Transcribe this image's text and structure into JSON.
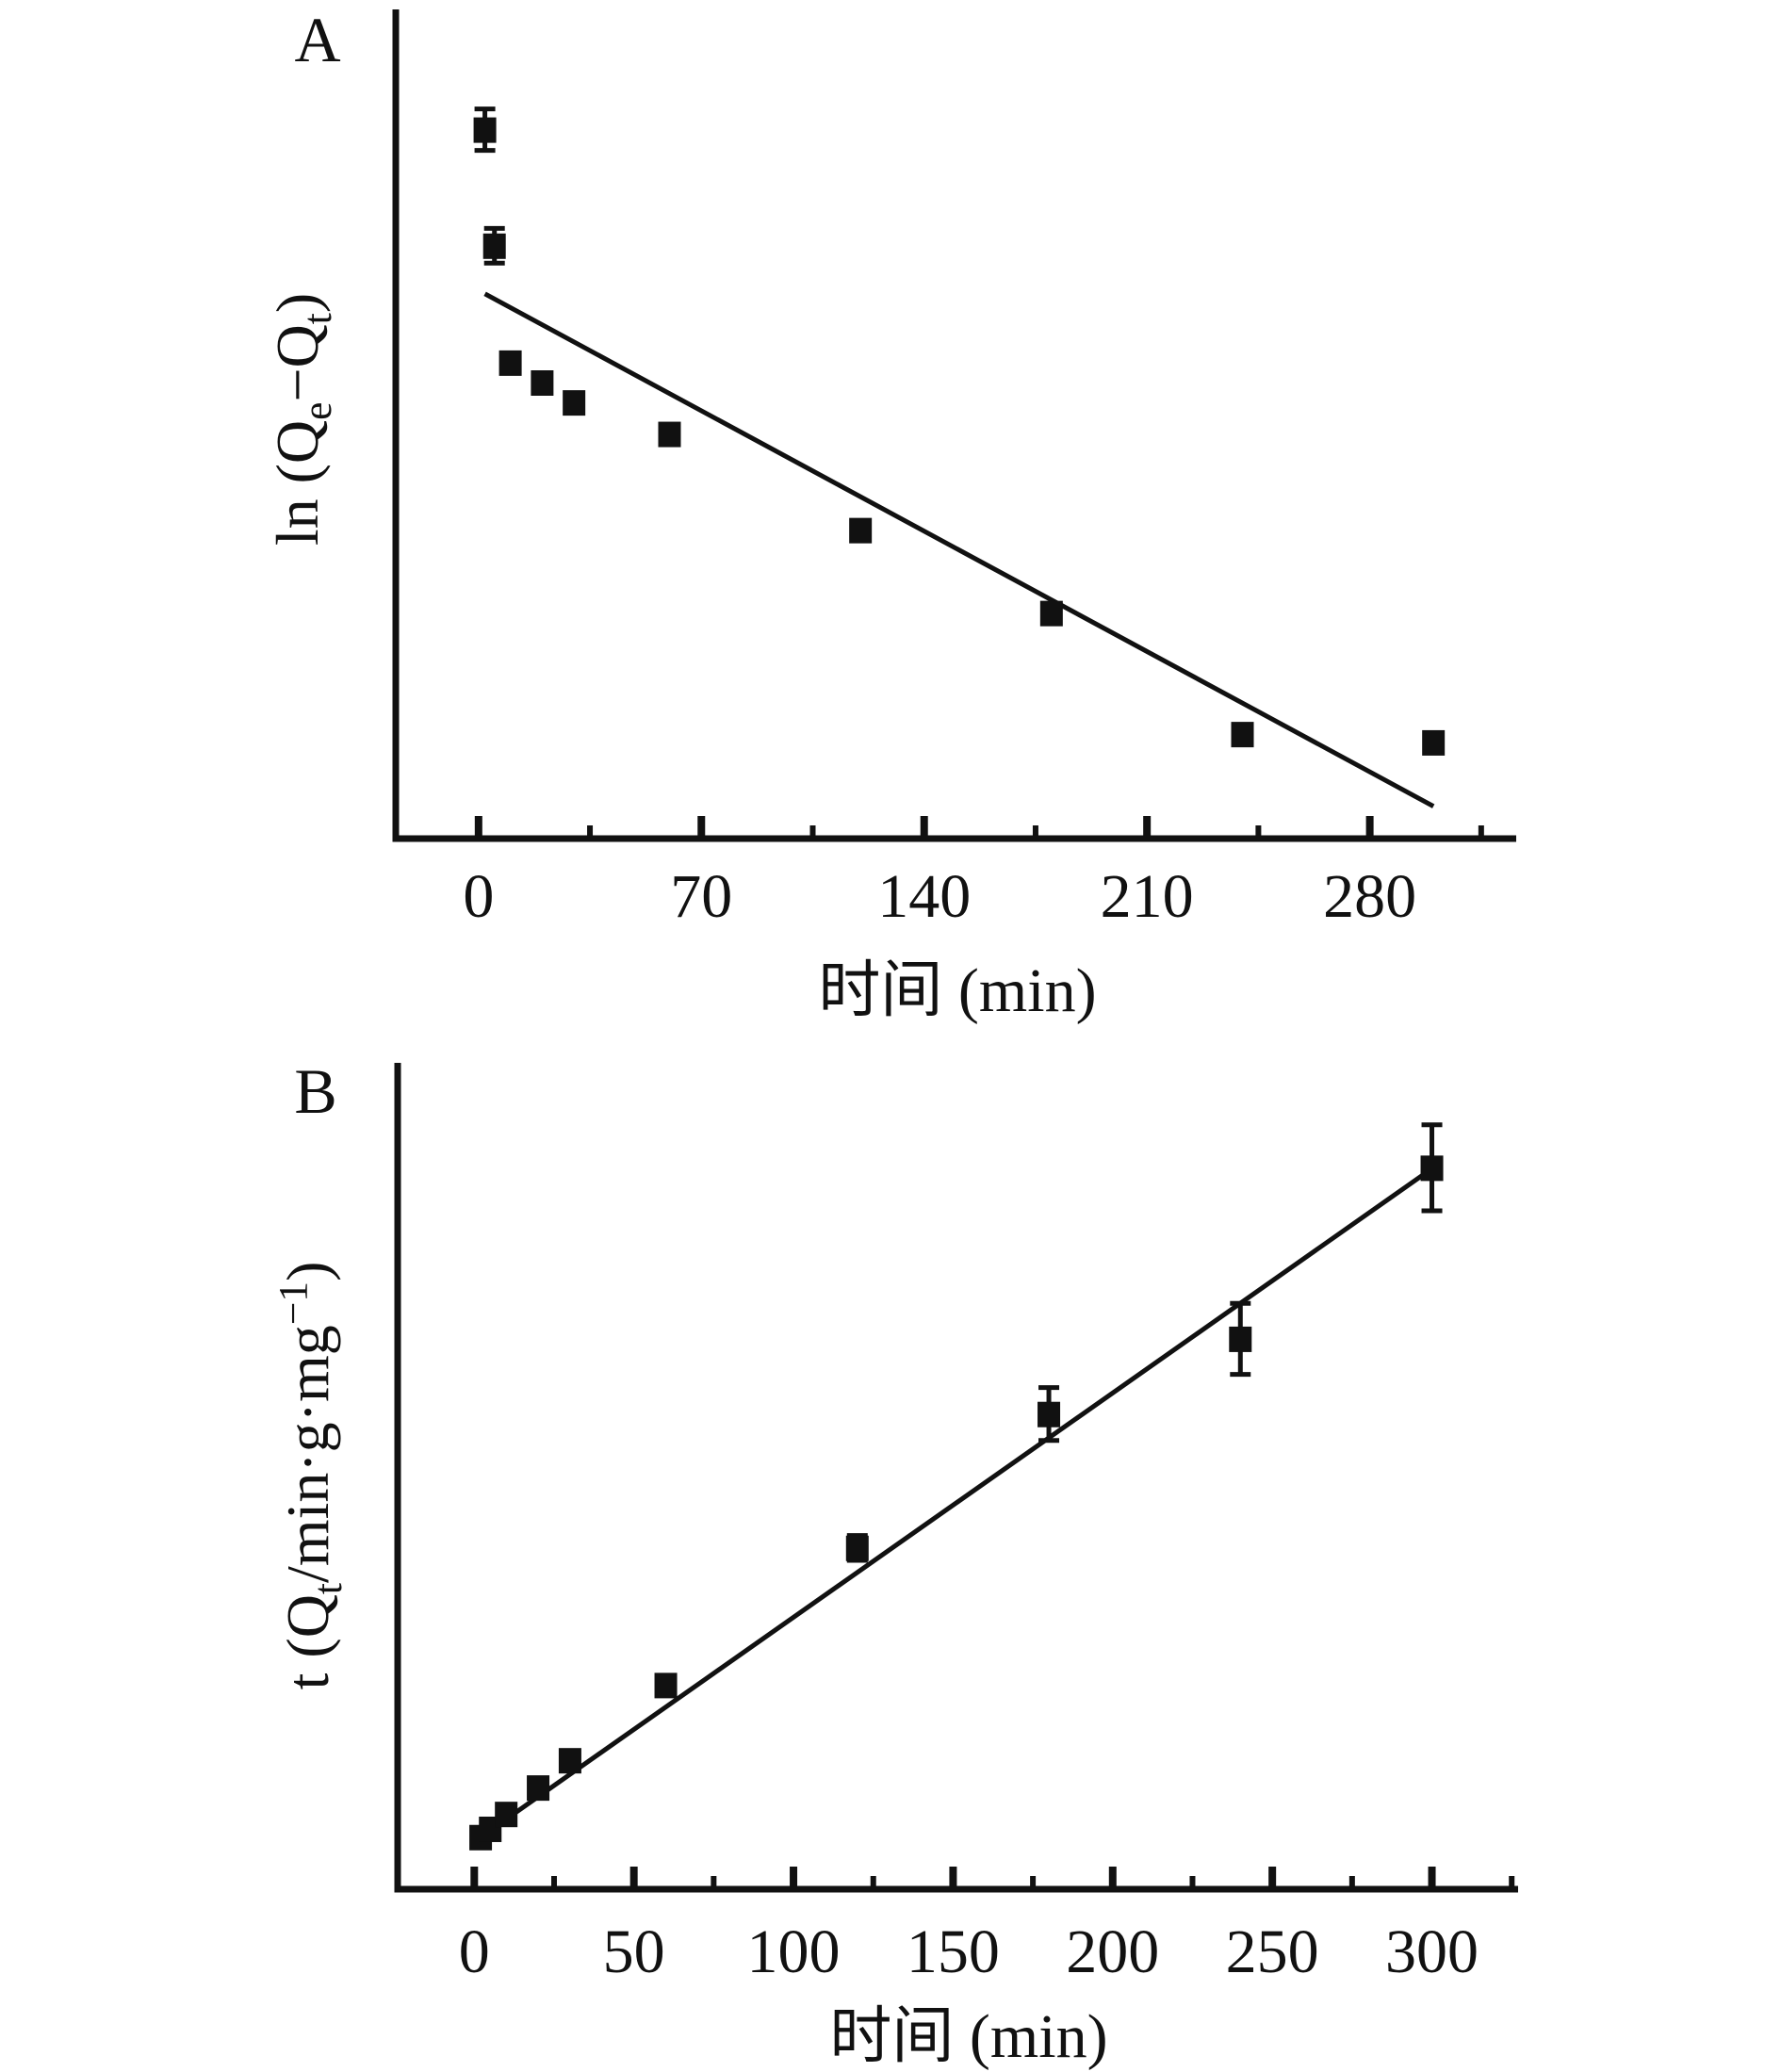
{
  "page": {
    "background_color": "#ffffff",
    "ink_color": "#111111",
    "description": "Two-panel adsorption kinetics figure: pseudo-first-order (A) and pseudo-second-order (B) linear fits"
  },
  "labels": {
    "panel_a_letter": "A",
    "panel_b_letter": "B",
    "panel_a_ylabel": {
      "pre": "ln (Q",
      "sub1": "e",
      "mid": "−Q",
      "sub2": "t",
      "post": ")"
    },
    "panel_b_ylabel": {
      "pre": "t (Q",
      "sub1": "t",
      "mid": "/min·g·mg",
      "sup": "−1",
      "post": ")"
    },
    "panel_a_xlabel": "时间 (min)",
    "panel_b_xlabel": "时间 (min)"
  },
  "chart_data": [
    {
      "type": "scatter",
      "panel": "A",
      "title": "",
      "xlabel": "时间 (min)",
      "ylabel": "ln (Qe−Qt)",
      "marker": "filled-square",
      "grid": false,
      "legend": "none",
      "x_ticks": [
        0,
        70,
        140,
        210,
        280
      ],
      "x_minor_ticks": [
        35,
        105,
        175,
        245,
        315
      ],
      "x_range": [
        -26,
        326
      ],
      "y_axis_note": "y axis has no tick marks or numeric labels; y values given as fraction of plot height above the x-axis",
      "x": [
        2,
        5,
        10,
        20,
        30,
        60,
        120,
        180,
        240,
        300
      ],
      "y_rel": [
        0.855,
        0.715,
        0.574,
        0.55,
        0.526,
        0.488,
        0.372,
        0.272,
        0.126,
        0.116
      ],
      "y_err_rel": [
        0.025,
        0.021,
        0,
        0,
        0,
        0,
        0,
        0,
        0,
        0
      ],
      "fit_line": {
        "x": [
          2,
          300
        ],
        "y_rel": [
          0.657,
          0.039
        ]
      }
    },
    {
      "type": "scatter",
      "panel": "B",
      "title": "",
      "xlabel": "时间 (min)",
      "ylabel": "t (Qt/min·g·mg−1)",
      "marker": "filled-square",
      "grid": false,
      "legend": "none",
      "x_ticks": [
        0,
        50,
        100,
        150,
        200,
        250,
        300
      ],
      "x_minor_ticks": [
        25,
        75,
        125,
        175,
        225,
        275,
        325
      ],
      "x_range": [
        -24,
        327
      ],
      "y_axis_note": "y axis has no tick marks or numeric labels; y values given as fraction of plot height above the x-axis",
      "x": [
        2,
        5,
        10,
        20,
        30,
        60,
        120,
        180,
        240,
        300
      ],
      "y_rel": [
        0.063,
        0.073,
        0.091,
        0.123,
        0.156,
        0.247,
        0.413,
        0.575,
        0.666,
        0.873
      ],
      "y_err_rel": [
        0,
        0,
        0,
        0,
        0,
        0,
        0.015,
        0.032,
        0.043,
        0.052
      ],
      "fit_line": {
        "x": [
          2,
          300
        ],
        "y_rel": [
          0.063,
          0.872
        ]
      }
    }
  ]
}
